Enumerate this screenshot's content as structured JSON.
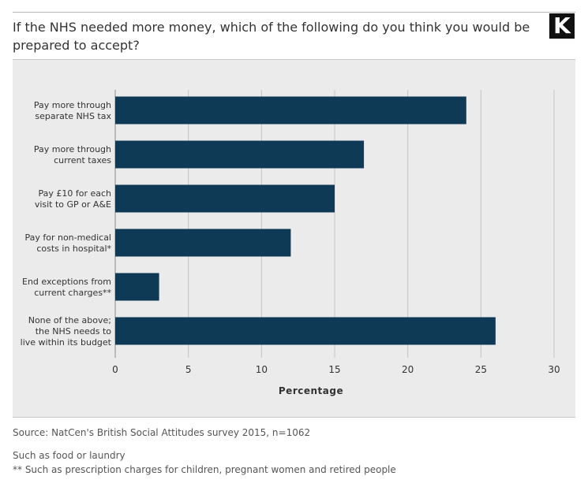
{
  "header": {
    "title": "If the NHS needed more money, which of the following do you think you would be prepared to accept?",
    "logo_text": "K"
  },
  "chart_data": {
    "type": "bar",
    "orientation": "horizontal",
    "categories": [
      [
        "Pay more through",
        "separate NHS tax"
      ],
      [
        "Pay more through",
        "current taxes"
      ],
      [
        "Pay £10 for each",
        "visit to GP or A&E"
      ],
      [
        "Pay for non-medical",
        "costs in hospital*"
      ],
      [
        "End exceptions from",
        "current charges**"
      ],
      [
        "None of the above;",
        "the NHS needs to",
        "live within its budget"
      ]
    ],
    "values": [
      24,
      17,
      15,
      12,
      3,
      26
    ],
    "xlabel": "Percentage",
    "ylabel": "",
    "xlim": [
      0,
      30
    ],
    "xticks": [
      0,
      5,
      10,
      15,
      20,
      25,
      30
    ],
    "grid": true,
    "bar_color": "#0f3a55"
  },
  "footer": {
    "source": "Source: NatCen's British Social Attitudes survey 2015, n=1062",
    "note1": "Such as food or laundry",
    "note2": "** Such as prescription charges for children, pregnant women and retired people"
  }
}
